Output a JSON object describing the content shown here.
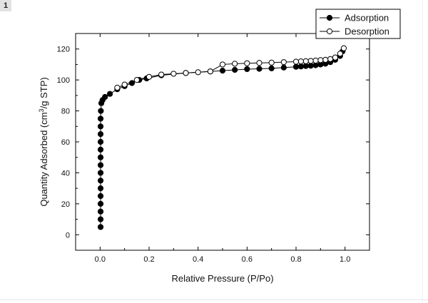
{
  "badge": "1",
  "chart_data": {
    "type": "line",
    "xlabel": "Relative Pressure (P/Po)",
    "ylabel_parts": [
      "Quantity Adsorbed (cm",
      "3",
      "/g STP)"
    ],
    "xlim": [
      -0.1,
      1.1
    ],
    "ylim": [
      -10,
      130
    ],
    "xticks": [
      0.0,
      0.2,
      0.4,
      0.6,
      0.8,
      1.0
    ],
    "xtick_labels": [
      "0.0",
      "0.2",
      "0.4",
      "0.6",
      "0.8",
      "1.0"
    ],
    "yticks": [
      0,
      20,
      40,
      60,
      80,
      100,
      120
    ],
    "ytick_labels": [
      "0",
      "20",
      "40",
      "60",
      "80",
      "100",
      "120"
    ],
    "legend_position": "top-right",
    "grid": false,
    "series": [
      {
        "name": "Adsorption",
        "marker": "filled-circle",
        "color": "#000000",
        "x": [
          0.002,
          0.002,
          0.002,
          0.002,
          0.002,
          0.002,
          0.002,
          0.002,
          0.002,
          0.002,
          0.002,
          0.002,
          0.002,
          0.002,
          0.002,
          0.003,
          0.005,
          0.01,
          0.02,
          0.04,
          0.07,
          0.1,
          0.13,
          0.16,
          0.19,
          0.25,
          0.35,
          0.45,
          0.5,
          0.55,
          0.6,
          0.65,
          0.7,
          0.75,
          0.8,
          0.82,
          0.84,
          0.86,
          0.88,
          0.9,
          0.92,
          0.94,
          0.96,
          0.98,
          0.99
        ],
        "y": [
          5,
          10,
          15,
          20,
          25,
          30,
          35,
          40,
          45,
          50,
          55,
          60,
          65,
          70,
          75,
          80,
          85,
          87,
          89,
          91,
          94,
          96,
          98,
          100,
          101,
          103,
          104.5,
          105.5,
          106,
          106.5,
          107,
          107.2,
          107.5,
          108,
          108.5,
          108.7,
          109,
          109.2,
          109.5,
          110,
          110.5,
          111.5,
          113,
          115.5,
          118.5
        ]
      },
      {
        "name": "Desorption",
        "marker": "open-circle",
        "color": "#000000",
        "x": [
          0.995,
          0.98,
          0.96,
          0.94,
          0.92,
          0.9,
          0.88,
          0.86,
          0.84,
          0.82,
          0.8,
          0.75,
          0.7,
          0.65,
          0.6,
          0.55,
          0.5,
          0.45,
          0.4,
          0.35,
          0.3,
          0.25,
          0.2,
          0.15,
          0.1,
          0.07
        ],
        "y": [
          120.5,
          117,
          114.5,
          113.5,
          113,
          112.8,
          112.5,
          112.3,
          112.1,
          112,
          111.8,
          111.5,
          111.2,
          111,
          110.8,
          110.5,
          110,
          105.5,
          105,
          104.5,
          104,
          103.5,
          102,
          100,
          97,
          95
        ]
      }
    ]
  }
}
